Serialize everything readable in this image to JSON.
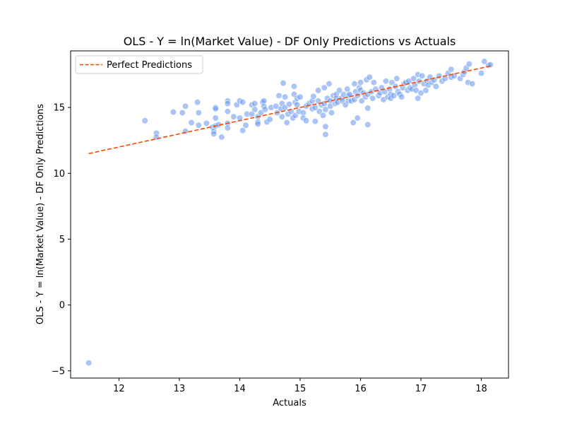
{
  "chart_data": {
    "type": "scatter",
    "title": "OLS - Y = ln(Market Value) - DF Only Predictions vs Actuals",
    "xlabel": "Actuals",
    "ylabel": "OLS - Y = ln(Market Value) - DF Only Predictions",
    "xlim": [
      11.2,
      18.45
    ],
    "ylim": [
      -5.55,
      19.3
    ],
    "xticks": [
      12,
      13,
      14,
      15,
      16,
      17,
      18
    ],
    "yticks": [
      -5,
      0,
      5,
      10,
      15
    ],
    "ytick_labels": [
      "−5",
      "0",
      "5",
      "10",
      "15"
    ],
    "grid": false,
    "legend": {
      "placement": "top-left",
      "entries": [
        "Perfect Predictions"
      ]
    },
    "colors": {
      "points": "#6495ed",
      "line": "#ff4500"
    },
    "perfect_line": {
      "x": [
        11.5,
        18.15
      ],
      "y": [
        11.5,
        18.15
      ]
    },
    "points": [
      [
        11.5,
        -4.4
      ],
      [
        12.43,
        14.0
      ],
      [
        12.62,
        13.05
      ],
      [
        12.62,
        12.75
      ],
      [
        12.9,
        14.65
      ],
      [
        13.05,
        14.6
      ],
      [
        13.1,
        15.1
      ],
      [
        13.1,
        13.2
      ],
      [
        13.2,
        13.85
      ],
      [
        13.3,
        15.4
      ],
      [
        13.32,
        14.6
      ],
      [
        13.32,
        13.65
      ],
      [
        13.45,
        13.8
      ],
      [
        13.55,
        13.5
      ],
      [
        13.57,
        13.2
      ],
      [
        13.57,
        13.0
      ],
      [
        13.6,
        15.0
      ],
      [
        13.6,
        14.9
      ],
      [
        13.6,
        14.2
      ],
      [
        13.6,
        13.6
      ],
      [
        13.65,
        13.7
      ],
      [
        13.7,
        12.75
      ],
      [
        13.8,
        15.5
      ],
      [
        13.8,
        15.3
      ],
      [
        13.8,
        14.7
      ],
      [
        13.8,
        13.8
      ],
      [
        13.8,
        13.45
      ],
      [
        13.9,
        14.3
      ],
      [
        13.95,
        15.2
      ],
      [
        14.0,
        15.5
      ],
      [
        14.0,
        14.2
      ],
      [
        14.05,
        15.4
      ],
      [
        14.05,
        13.25
      ],
      [
        14.1,
        13.65
      ],
      [
        14.12,
        14.5
      ],
      [
        14.2,
        15.2
      ],
      [
        14.2,
        14.5
      ],
      [
        14.25,
        15.3
      ],
      [
        14.25,
        14.85
      ],
      [
        14.3,
        14.3
      ],
      [
        14.3,
        13.9
      ],
      [
        14.3,
        13.75
      ],
      [
        14.35,
        14.6
      ],
      [
        14.38,
        15.4
      ],
      [
        14.4,
        15.5
      ],
      [
        14.4,
        15.1
      ],
      [
        14.42,
        14.85
      ],
      [
        14.45,
        13.9
      ],
      [
        14.5,
        14.1
      ],
      [
        14.52,
        15.0
      ],
      [
        14.6,
        15.1
      ],
      [
        14.62,
        14.6
      ],
      [
        14.65,
        15.9
      ],
      [
        14.68,
        14.9
      ],
      [
        14.7,
        15.3
      ],
      [
        14.7,
        14.3
      ],
      [
        14.72,
        16.85
      ],
      [
        14.75,
        15.8
      ],
      [
        14.75,
        15.0
      ],
      [
        14.78,
        13.85
      ],
      [
        14.8,
        14.5
      ],
      [
        14.82,
        15.25
      ],
      [
        14.85,
        14.7
      ],
      [
        14.88,
        14.2
      ],
      [
        14.9,
        16.6
      ],
      [
        14.9,
        16.0
      ],
      [
        14.92,
        15.4
      ],
      [
        14.92,
        14.4
      ],
      [
        14.95,
        15.7
      ],
      [
        14.95,
        15.2
      ],
      [
        14.98,
        14.7
      ],
      [
        15.0,
        15.8
      ],
      [
        15.05,
        14.6
      ],
      [
        15.05,
        14.2
      ],
      [
        15.1,
        15.1
      ],
      [
        15.1,
        14.0
      ],
      [
        15.15,
        15.3
      ],
      [
        15.2,
        14.9
      ],
      [
        15.2,
        15.5
      ],
      [
        15.22,
        15.85
      ],
      [
        15.25,
        15.0
      ],
      [
        15.25,
        13.95
      ],
      [
        15.3,
        16.3
      ],
      [
        15.3,
        15.5
      ],
      [
        15.32,
        14.7
      ],
      [
        15.35,
        15.2
      ],
      [
        15.38,
        14.4
      ],
      [
        15.4,
        16.5
      ],
      [
        15.4,
        15.3
      ],
      [
        15.42,
        14.85
      ],
      [
        15.42,
        13.55
      ],
      [
        15.42,
        12.95
      ],
      [
        15.45,
        15.7
      ],
      [
        15.48,
        16.8
      ],
      [
        15.5,
        15.5
      ],
      [
        15.5,
        15.1
      ],
      [
        15.52,
        14.6
      ],
      [
        15.55,
        15.9
      ],
      [
        15.58,
        15.3
      ],
      [
        15.6,
        16.0
      ],
      [
        15.6,
        15.7
      ],
      [
        15.62,
        15.4
      ],
      [
        15.65,
        16.3
      ],
      [
        15.68,
        15.7
      ],
      [
        15.7,
        15.5
      ],
      [
        15.72,
        16.0
      ],
      [
        15.75,
        15.2
      ],
      [
        15.78,
        16.4
      ],
      [
        15.8,
        15.5
      ],
      [
        15.8,
        15.9
      ],
      [
        15.82,
        16.0
      ],
      [
        15.85,
        15.5
      ],
      [
        15.88,
        13.85
      ],
      [
        15.9,
        16.8
      ],
      [
        15.9,
        15.6
      ],
      [
        15.92,
        16.2
      ],
      [
        15.95,
        15.9
      ],
      [
        15.95,
        14.2
      ],
      [
        15.98,
        16.5
      ],
      [
        16.0,
        16.9
      ],
      [
        16.0,
        16.3
      ],
      [
        16.02,
        15.5
      ],
      [
        16.05,
        16.1
      ],
      [
        16.08,
        15.8
      ],
      [
        16.1,
        17.1
      ],
      [
        16.12,
        16.0
      ],
      [
        16.12,
        14.95
      ],
      [
        16.12,
        13.7
      ],
      [
        16.15,
        17.3
      ],
      [
        16.18,
        16.2
      ],
      [
        16.2,
        15.7
      ],
      [
        16.22,
        16.9
      ],
      [
        16.25,
        16.4
      ],
      [
        16.3,
        15.9
      ],
      [
        16.32,
        16.1
      ],
      [
        16.35,
        16.5
      ],
      [
        16.38,
        15.6
      ],
      [
        16.4,
        16.2
      ],
      [
        16.42,
        17.0
      ],
      [
        16.45,
        15.8
      ],
      [
        16.48,
        16.4
      ],
      [
        16.5,
        16.0
      ],
      [
        16.5,
        15.7
      ],
      [
        16.52,
        16.9
      ],
      [
        16.55,
        15.9
      ],
      [
        16.58,
        16.6
      ],
      [
        16.6,
        17.2
      ],
      [
        16.62,
        16.2
      ],
      [
        16.65,
        16.0
      ],
      [
        16.68,
        15.8
      ],
      [
        16.7,
        16.5
      ],
      [
        16.72,
        16.8
      ],
      [
        16.75,
        16.9
      ],
      [
        16.78,
        16.3
      ],
      [
        16.8,
        17.0
      ],
      [
        16.82,
        16.5
      ],
      [
        16.85,
        16.4
      ],
      [
        16.88,
        17.2
      ],
      [
        16.9,
        16.7
      ],
      [
        16.92,
        16.3
      ],
      [
        16.95,
        17.5
      ],
      [
        16.95,
        15.7
      ],
      [
        16.97,
        17.0
      ],
      [
        17.0,
        16.1
      ],
      [
        17.02,
        17.4
      ],
      [
        17.05,
        16.8
      ],
      [
        17.08,
        16.3
      ],
      [
        17.1,
        17.0
      ],
      [
        17.12,
        16.7
      ],
      [
        17.15,
        17.3
      ],
      [
        17.18,
        16.9
      ],
      [
        17.22,
        17.1
      ],
      [
        17.25,
        16.6
      ],
      [
        17.3,
        17.4
      ],
      [
        17.35,
        17.0
      ],
      [
        17.4,
        17.2
      ],
      [
        17.45,
        17.6
      ],
      [
        17.5,
        17.9
      ],
      [
        17.5,
        17.3
      ],
      [
        17.55,
        17.4
      ],
      [
        17.65,
        17.2
      ],
      [
        17.7,
        17.5
      ],
      [
        17.72,
        17.7
      ],
      [
        17.75,
        18.0
      ],
      [
        17.78,
        16.9
      ],
      [
        17.8,
        18.3
      ],
      [
        17.85,
        16.8
      ],
      [
        18.0,
        17.6
      ],
      [
        18.05,
        18.5
      ],
      [
        18.12,
        18.2
      ],
      [
        18.15,
        18.25
      ]
    ]
  }
}
